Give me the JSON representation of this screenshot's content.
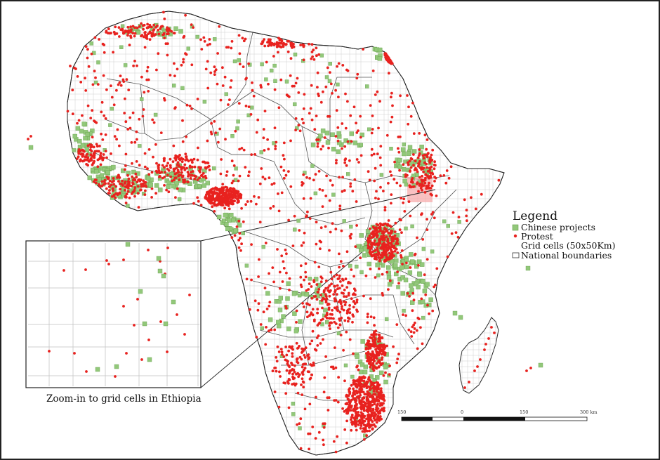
{
  "legend": {
    "title": "Legend",
    "items": [
      {
        "label": "Chinese projects",
        "symbol": "green-square",
        "color": "#92c87a"
      },
      {
        "label": "Protest",
        "symbol": "red-dot",
        "color": "#e8221f"
      },
      {
        "label": "Grid cells (50x50Km)",
        "symbol": "none",
        "color": "#cccccc"
      },
      {
        "label": "National boundaries",
        "symbol": "outline-box",
        "color": "#333333"
      }
    ]
  },
  "inset": {
    "caption": "Zoom-in to grid cells in Ethiopia"
  },
  "scale_bar": {
    "labels": [
      "150",
      "0",
      "150",
      "300 km"
    ]
  },
  "colors": {
    "protest": "#e8221f",
    "project": "#92c87a",
    "project_edge": "#6aa24f",
    "highlight": "#f7a7a7",
    "boundary": "#333333",
    "grid": "#c9c9c9",
    "frame": "#222222"
  },
  "icons": {
    "protest_marker": "red-dot-icon",
    "project_marker": "green-square-icon"
  }
}
